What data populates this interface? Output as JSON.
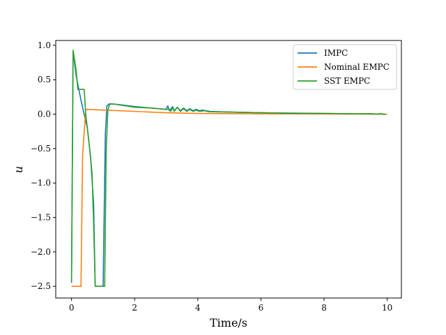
{
  "chart_data": {
    "type": "line",
    "title": "",
    "xlabel": "Time/s",
    "ylabel": "u",
    "xlim": [
      -0.5,
      10.45
    ],
    "ylim": [
      -2.67,
      1.07
    ],
    "xticks": [
      0,
      2,
      4,
      6,
      8,
      10
    ],
    "yticks": [
      1.0,
      0.5,
      0.0,
      -0.5,
      -1.0,
      -1.5,
      -2.0,
      -2.5
    ],
    "xtick_labels": [
      "0",
      "2",
      "4",
      "6",
      "8",
      "10"
    ],
    "ytick_labels": [
      "1.0",
      "0.5",
      "0.0",
      "−0.5",
      "−1.0",
      "−1.5",
      "−2.0",
      "−2.5"
    ],
    "grid": false,
    "legend_position": "top-right",
    "series": [
      {
        "name": "IMPC",
        "color": "#1f77b4",
        "points": [
          [
            0,
            -2.45
          ],
          [
            0.05,
            0.9
          ],
          [
            0.15,
            0.55
          ],
          [
            0.3,
            0.2
          ],
          [
            0.5,
            -0.2
          ],
          [
            0.6,
            -0.6
          ],
          [
            0.7,
            -1.3
          ],
          [
            0.75,
            -2.5
          ],
          [
            0.85,
            -2.5
          ],
          [
            1.0,
            -2.5
          ],
          [
            1.07,
            -0.3
          ],
          [
            1.12,
            0.12
          ],
          [
            1.2,
            0.15
          ],
          [
            1.5,
            0.14
          ],
          [
            2.0,
            0.11
          ],
          [
            2.5,
            0.09
          ],
          [
            3.0,
            0.07
          ],
          [
            3.05,
            0.12
          ],
          [
            3.1,
            0.05
          ],
          [
            3.2,
            0.11
          ],
          [
            3.25,
            0.05
          ],
          [
            3.35,
            0.1
          ],
          [
            3.45,
            0.05
          ],
          [
            3.55,
            0.09
          ],
          [
            3.65,
            0.05
          ],
          [
            3.75,
            0.08
          ],
          [
            3.85,
            0.05
          ],
          [
            3.95,
            0.07
          ],
          [
            4.05,
            0.05
          ],
          [
            4.15,
            0.06
          ],
          [
            4.25,
            0.05
          ],
          [
            4.4,
            0.04
          ],
          [
            5.0,
            0.03
          ],
          [
            6.0,
            0.02
          ],
          [
            7.0,
            0.015
          ],
          [
            8.0,
            0.01
          ],
          [
            9.0,
            0.005
          ],
          [
            9.9,
            0.0
          ]
        ]
      },
      {
        "name": "Nominal EMPC",
        "color": "#ff7f0e",
        "points": [
          [
            0,
            -2.5
          ],
          [
            0.3,
            -2.5
          ],
          [
            0.35,
            -0.6
          ],
          [
            0.45,
            0.07
          ],
          [
            1.0,
            0.06
          ],
          [
            2.0,
            0.04
          ],
          [
            3.0,
            0.02
          ],
          [
            4.0,
            0.01
          ],
          [
            6.0,
            0.005
          ],
          [
            8.0,
            0.002
          ],
          [
            10.0,
            0.0
          ]
        ]
      },
      {
        "name": "SST EMPC",
        "color": "#2ca02c",
        "points": [
          [
            0,
            -2.4
          ],
          [
            0.05,
            0.93
          ],
          [
            0.15,
            0.62
          ],
          [
            0.2,
            0.36
          ],
          [
            0.4,
            0.36
          ],
          [
            0.45,
            0.0
          ],
          [
            0.55,
            -0.4
          ],
          [
            0.65,
            -0.85
          ],
          [
            0.7,
            -1.6
          ],
          [
            0.75,
            -2.5
          ],
          [
            0.85,
            -2.5
          ],
          [
            1.05,
            -2.5
          ],
          [
            1.1,
            -0.5
          ],
          [
            1.15,
            0.05
          ],
          [
            1.2,
            0.14
          ],
          [
            1.3,
            0.15
          ],
          [
            2.0,
            0.1
          ],
          [
            2.5,
            0.09
          ],
          [
            3.0,
            0.07
          ],
          [
            3.1,
            0.07
          ],
          [
            3.15,
            0.04
          ],
          [
            3.2,
            0.1
          ],
          [
            3.25,
            0.04
          ],
          [
            3.35,
            0.1
          ],
          [
            3.45,
            0.04
          ],
          [
            3.55,
            0.08
          ],
          [
            3.65,
            0.04
          ],
          [
            3.75,
            0.07
          ],
          [
            3.85,
            0.04
          ],
          [
            3.95,
            0.06
          ],
          [
            4.05,
            0.04
          ],
          [
            4.2,
            0.05
          ],
          [
            4.35,
            0.035
          ],
          [
            5.0,
            0.03
          ],
          [
            6.0,
            0.02
          ],
          [
            6.6,
            0.015
          ],
          [
            7.0,
            0.012
          ],
          [
            8.0,
            0.01
          ],
          [
            9.0,
            0.005
          ],
          [
            9.5,
            0.008
          ],
          [
            9.7,
            0.0
          ],
          [
            9.8,
            0.01
          ],
          [
            9.9,
            -0.005
          ],
          [
            9.95,
            0.0
          ]
        ]
      }
    ]
  }
}
